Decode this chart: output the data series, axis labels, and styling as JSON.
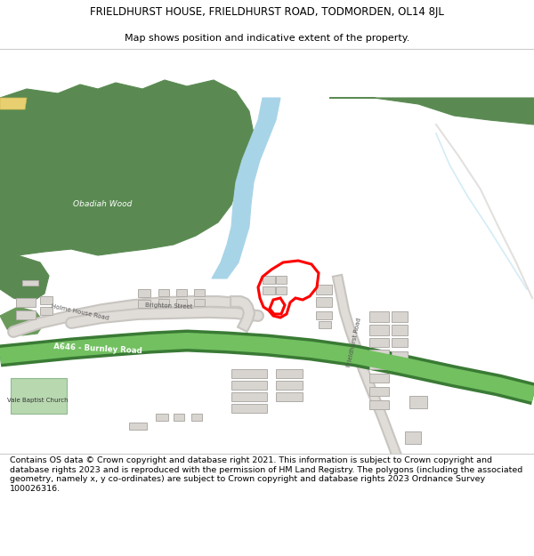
{
  "title_line1": "FRIELDHURST HOUSE, FRIELDHURST ROAD, TODMORDEN, OL14 8JL",
  "title_line2": "Map shows position and indicative extent of the property.",
  "footer": "Contains OS data © Crown copyright and database right 2021. This information is subject to Crown copyright and database rights 2023 and is reproduced with the permission of HM Land Registry. The polygons (including the associated geometry, namely x, y co-ordinates) are subject to Crown copyright and database rights 2023 Ordnance Survey 100026316.",
  "wood_color": "#5a8a52",
  "wood_color2": "#6a9a5a",
  "map_bg": "#f2ede8",
  "water_color": "#a8d4e8",
  "water_light": "#c8e8f4",
  "road_fill": "#e0dcd8",
  "road_edge": "#c8c4c0",
  "green_road_dark": "#3a7a35",
  "green_road_light": "#72c060",
  "green_road_mid": "#5aaa48",
  "property_color": "#ff0000",
  "building_color": "#d8d5d0",
  "building_outline": "#b0aca8",
  "yellow_road": "#e8d88a",
  "text_dark": "#333333",
  "text_road": "#555555"
}
